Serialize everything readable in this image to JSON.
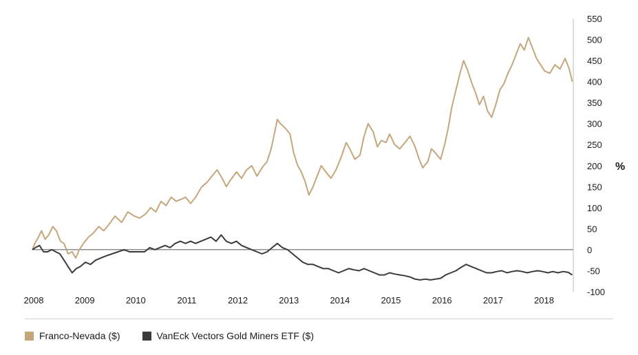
{
  "chart_data": {
    "type": "line",
    "title": "",
    "xlabel": "",
    "ylabel": "%",
    "xlim": [
      2008.0,
      2018.6
    ],
    "ylim": [
      -100,
      550
    ],
    "x_tick_labels": [
      "2008",
      "2009",
      "2010",
      "2011",
      "2012",
      "2013",
      "2014",
      "2015",
      "2016",
      "2017",
      "2018"
    ],
    "y_tick_labels": [
      "550",
      "500",
      "450",
      "400",
      "350",
      "300",
      "250",
      "200",
      "150",
      "100",
      "50",
      "0",
      "-50",
      "-100"
    ],
    "grid": false,
    "legend": "bottom",
    "series": [
      {
        "name": "Franco-Nevada ($)",
        "color": "#c4a67a",
        "points": [
          [
            2008.0,
            0
          ],
          [
            2008.05,
            15
          ],
          [
            2008.12,
            30
          ],
          [
            2008.18,
            45
          ],
          [
            2008.25,
            25
          ],
          [
            2008.32,
            35
          ],
          [
            2008.4,
            55
          ],
          [
            2008.47,
            45
          ],
          [
            2008.55,
            20
          ],
          [
            2008.62,
            15
          ],
          [
            2008.7,
            -10
          ],
          [
            2008.78,
            -5
          ],
          [
            2008.85,
            -20
          ],
          [
            2008.92,
            0
          ],
          [
            2009.0,
            15
          ],
          [
            2009.1,
            30
          ],
          [
            2009.2,
            40
          ],
          [
            2009.3,
            55
          ],
          [
            2009.4,
            45
          ],
          [
            2009.5,
            60
          ],
          [
            2009.62,
            80
          ],
          [
            2009.75,
            65
          ],
          [
            2009.87,
            90
          ],
          [
            2010.0,
            80
          ],
          [
            2010.1,
            75
          ],
          [
            2010.22,
            85
          ],
          [
            2010.32,
            100
          ],
          [
            2010.42,
            90
          ],
          [
            2010.52,
            115
          ],
          [
            2010.62,
            105
          ],
          [
            2010.72,
            125
          ],
          [
            2010.82,
            115
          ],
          [
            2010.92,
            120
          ],
          [
            2011.0,
            125
          ],
          [
            2011.1,
            110
          ],
          [
            2011.2,
            125
          ],
          [
            2011.32,
            150
          ],
          [
            2011.42,
            160
          ],
          [
            2011.52,
            175
          ],
          [
            2011.62,
            190
          ],
          [
            2011.72,
            170
          ],
          [
            2011.8,
            150
          ],
          [
            2011.88,
            165
          ],
          [
            2012.0,
            185
          ],
          [
            2012.1,
            170
          ],
          [
            2012.2,
            190
          ],
          [
            2012.3,
            200
          ],
          [
            2012.4,
            175
          ],
          [
            2012.5,
            195
          ],
          [
            2012.6,
            210
          ],
          [
            2012.68,
            240
          ],
          [
            2012.75,
            280
          ],
          [
            2012.8,
            310
          ],
          [
            2012.86,
            300
          ],
          [
            2012.95,
            290
          ],
          [
            2013.05,
            275
          ],
          [
            2013.12,
            230
          ],
          [
            2013.2,
            200
          ],
          [
            2013.27,
            185
          ],
          [
            2013.35,
            160
          ],
          [
            2013.42,
            130
          ],
          [
            2013.5,
            150
          ],
          [
            2013.58,
            175
          ],
          [
            2013.66,
            200
          ],
          [
            2013.75,
            185
          ],
          [
            2013.85,
            170
          ],
          [
            2013.95,
            190
          ],
          [
            2014.05,
            220
          ],
          [
            2014.15,
            255
          ],
          [
            2014.22,
            240
          ],
          [
            2014.32,
            215
          ],
          [
            2014.42,
            225
          ],
          [
            2014.5,
            270
          ],
          [
            2014.58,
            300
          ],
          [
            2014.68,
            280
          ],
          [
            2014.76,
            245
          ],
          [
            2014.84,
            260
          ],
          [
            2014.93,
            255
          ],
          [
            2015.0,
            275
          ],
          [
            2015.1,
            250
          ],
          [
            2015.2,
            240
          ],
          [
            2015.3,
            255
          ],
          [
            2015.4,
            270
          ],
          [
            2015.5,
            245
          ],
          [
            2015.58,
            215
          ],
          [
            2015.65,
            195
          ],
          [
            2015.75,
            210
          ],
          [
            2015.82,
            240
          ],
          [
            2015.9,
            230
          ],
          [
            2016.0,
            215
          ],
          [
            2016.08,
            250
          ],
          [
            2016.15,
            290
          ],
          [
            2016.22,
            340
          ],
          [
            2016.3,
            380
          ],
          [
            2016.38,
            420
          ],
          [
            2016.45,
            450
          ],
          [
            2016.52,
            430
          ],
          [
            2016.6,
            400
          ],
          [
            2016.68,
            375
          ],
          [
            2016.76,
            345
          ],
          [
            2016.84,
            365
          ],
          [
            2016.92,
            330
          ],
          [
            2017.0,
            315
          ],
          [
            2017.08,
            345
          ],
          [
            2017.16,
            380
          ],
          [
            2017.24,
            395
          ],
          [
            2017.32,
            420
          ],
          [
            2017.4,
            440
          ],
          [
            2017.48,
            465
          ],
          [
            2017.56,
            490
          ],
          [
            2017.64,
            475
          ],
          [
            2017.72,
            505
          ],
          [
            2017.8,
            480
          ],
          [
            2017.88,
            455
          ],
          [
            2017.96,
            440
          ],
          [
            2018.04,
            425
          ],
          [
            2018.14,
            420
          ],
          [
            2018.24,
            440
          ],
          [
            2018.34,
            430
          ],
          [
            2018.44,
            455
          ],
          [
            2018.52,
            430
          ],
          [
            2018.58,
            400
          ]
        ]
      },
      {
        "name": "VanEck Vectors Gold Miners ETF ($)",
        "color": "#3a3a3a",
        "points": [
          [
            2008.0,
            0
          ],
          [
            2008.06,
            5
          ],
          [
            2008.14,
            10
          ],
          [
            2008.22,
            -5
          ],
          [
            2008.3,
            -5
          ],
          [
            2008.38,
            0
          ],
          [
            2008.46,
            -5
          ],
          [
            2008.54,
            -10
          ],
          [
            2008.62,
            -25
          ],
          [
            2008.7,
            -40
          ],
          [
            2008.78,
            -55
          ],
          [
            2008.86,
            -45
          ],
          [
            2008.94,
            -40
          ],
          [
            2009.04,
            -30
          ],
          [
            2009.14,
            -35
          ],
          [
            2009.24,
            -25
          ],
          [
            2009.34,
            -20
          ],
          [
            2009.44,
            -15
          ],
          [
            2009.56,
            -10
          ],
          [
            2009.68,
            -5
          ],
          [
            2009.8,
            0
          ],
          [
            2009.9,
            -5
          ],
          [
            2010.0,
            -5
          ],
          [
            2010.1,
            -5
          ],
          [
            2010.2,
            -5
          ],
          [
            2010.3,
            5
          ],
          [
            2010.4,
            0
          ],
          [
            2010.5,
            5
          ],
          [
            2010.6,
            10
          ],
          [
            2010.7,
            5
          ],
          [
            2010.8,
            15
          ],
          [
            2010.9,
            20
          ],
          [
            2011.0,
            15
          ],
          [
            2011.1,
            20
          ],
          [
            2011.2,
            15
          ],
          [
            2011.3,
            20
          ],
          [
            2011.4,
            25
          ],
          [
            2011.5,
            30
          ],
          [
            2011.6,
            20
          ],
          [
            2011.7,
            35
          ],
          [
            2011.8,
            20
          ],
          [
            2011.9,
            15
          ],
          [
            2012.0,
            20
          ],
          [
            2012.1,
            10
          ],
          [
            2012.2,
            5
          ],
          [
            2012.3,
            0
          ],
          [
            2012.4,
            -5
          ],
          [
            2012.5,
            -10
          ],
          [
            2012.6,
            -5
          ],
          [
            2012.7,
            5
          ],
          [
            2012.8,
            15
          ],
          [
            2012.9,
            5
          ],
          [
            2013.0,
            0
          ],
          [
            2013.1,
            -10
          ],
          [
            2013.2,
            -20
          ],
          [
            2013.3,
            -30
          ],
          [
            2013.4,
            -35
          ],
          [
            2013.5,
            -35
          ],
          [
            2013.6,
            -40
          ],
          [
            2013.7,
            -45
          ],
          [
            2013.8,
            -45
          ],
          [
            2013.9,
            -50
          ],
          [
            2014.0,
            -55
          ],
          [
            2014.1,
            -50
          ],
          [
            2014.2,
            -45
          ],
          [
            2014.3,
            -48
          ],
          [
            2014.4,
            -50
          ],
          [
            2014.5,
            -45
          ],
          [
            2014.6,
            -50
          ],
          [
            2014.7,
            -55
          ],
          [
            2014.8,
            -60
          ],
          [
            2014.9,
            -60
          ],
          [
            2015.0,
            -55
          ],
          [
            2015.1,
            -58
          ],
          [
            2015.2,
            -60
          ],
          [
            2015.3,
            -62
          ],
          [
            2015.4,
            -65
          ],
          [
            2015.5,
            -70
          ],
          [
            2015.6,
            -72
          ],
          [
            2015.7,
            -70
          ],
          [
            2015.8,
            -72
          ],
          [
            2015.9,
            -70
          ],
          [
            2016.0,
            -68
          ],
          [
            2016.1,
            -60
          ],
          [
            2016.2,
            -55
          ],
          [
            2016.3,
            -50
          ],
          [
            2016.4,
            -42
          ],
          [
            2016.5,
            -35
          ],
          [
            2016.6,
            -40
          ],
          [
            2016.7,
            -45
          ],
          [
            2016.8,
            -50
          ],
          [
            2016.9,
            -55
          ],
          [
            2017.0,
            -55
          ],
          [
            2017.1,
            -52
          ],
          [
            2017.2,
            -50
          ],
          [
            2017.3,
            -55
          ],
          [
            2017.4,
            -52
          ],
          [
            2017.5,
            -50
          ],
          [
            2017.6,
            -52
          ],
          [
            2017.7,
            -55
          ],
          [
            2017.8,
            -52
          ],
          [
            2017.9,
            -50
          ],
          [
            2018.0,
            -52
          ],
          [
            2018.1,
            -55
          ],
          [
            2018.2,
            -52
          ],
          [
            2018.3,
            -55
          ],
          [
            2018.4,
            -52
          ],
          [
            2018.5,
            -54
          ],
          [
            2018.58,
            -60
          ]
        ]
      }
    ]
  }
}
